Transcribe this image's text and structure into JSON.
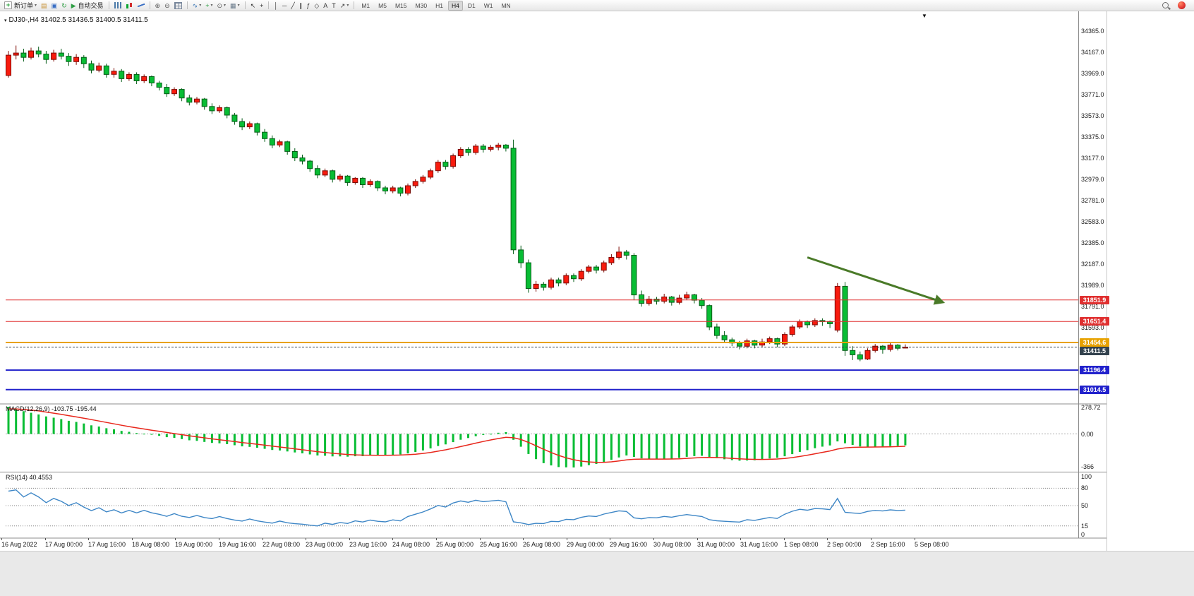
{
  "toolbar": {
    "items": [
      {
        "name": "new-order-button",
        "glyph": "+",
        "color": "#1d9e2f",
        "boxed": true,
        "label": "新订单",
        "dropdown": true
      },
      {
        "name": "profiles-icon",
        "glyph": "▤",
        "color": "#c78f2f"
      },
      {
        "name": "community-icon",
        "glyph": "▣",
        "color": "#3a6fc4"
      },
      {
        "name": "refresh-icon",
        "glyph": "↻",
        "color": "#2f9e44"
      },
      {
        "name": "algo-trading-button",
        "glyph": "▶",
        "color": "#2f9e44",
        "label": "自动交易"
      },
      {
        "sep": true
      },
      {
        "name": "bar-chart-icon",
        "shape": "bars"
      },
      {
        "name": "candlestick-chart-icon",
        "shape": "candles"
      },
      {
        "name": "line-chart-icon",
        "shape": "line"
      },
      {
        "sep": true
      },
      {
        "name": "zoom-in-icon",
        "glyph": "⊕",
        "color": "#555555"
      },
      {
        "name": "zoom-out-icon",
        "glyph": "⊖",
        "color": "#555555"
      },
      {
        "name": "tile-windows-icon",
        "shape": "grid"
      },
      {
        "sep": true
      },
      {
        "name": "indicators-icon",
        "glyph": "∿",
        "color": "#2b6cb0",
        "dropdown": true
      },
      {
        "name": "add-indicator-icon",
        "glyph": "+",
        "color": "#2f9e44",
        "dropdown": true
      },
      {
        "name": "periods-icon",
        "glyph": "⊙",
        "color": "#555555",
        "dropdown": true
      },
      {
        "name": "templates-icon",
        "glyph": "▦",
        "color": "#667788",
        "dropdown": true
      },
      {
        "sep": true
      },
      {
        "name": "cursor-icon",
        "glyph": "↖",
        "color": "#333333"
      },
      {
        "name": "crosshair-icon",
        "glyph": "+",
        "color": "#333333"
      },
      {
        "sep": true
      },
      {
        "name": "vertical-line-icon",
        "glyph": "│",
        "color": "#333333"
      },
      {
        "name": "horizontal-line-icon",
        "glyph": "─",
        "color": "#333333"
      },
      {
        "name": "trendline-icon",
        "glyph": "╱",
        "color": "#333333"
      },
      {
        "name": "channel-icon",
        "glyph": "∥",
        "color": "#333333"
      },
      {
        "name": "fibonacci-icon",
        "glyph": "ƒ",
        "color": "#333333"
      },
      {
        "name": "shapes-icon",
        "glyph": "◇",
        "color": "#333333"
      },
      {
        "name": "text-icon",
        "glyph": "A",
        "color": "#333333"
      },
      {
        "name": "label-icon",
        "glyph": "T",
        "color": "#333333"
      },
      {
        "name": "arrows-icon",
        "glyph": "↗",
        "color": "#333333",
        "dropdown": true
      },
      {
        "sep": true
      }
    ],
    "timeframes": [
      "M1",
      "M5",
      "M15",
      "M30",
      "H1",
      "H4",
      "D1",
      "W1",
      "MN"
    ],
    "active_timeframe": "H4",
    "right_items": [
      {
        "name": "search-icon",
        "shape": "mag"
      },
      {
        "name": "broker-logo-icon",
        "shape": "broker"
      }
    ]
  },
  "chart": {
    "symbol_label": "DJ30-,H4 31402.5 31436.5 31400.5 31411.5"
  },
  "indicators": {
    "macd": {
      "label": "MACD(12,26,9) -103.75 -195.44",
      "axis_max": "278.72",
      "axis_zero": "0.00",
      "axis_min": "-366"
    },
    "rsi": {
      "label": "RSI(14) 40.4553",
      "levels": [
        "100",
        "80",
        "50",
        "15",
        "0"
      ]
    }
  },
  "chart_data": {
    "type": "candlestick",
    "symbol": "DJ30-",
    "timeframe": "H4",
    "last_ohlc": {
      "open": 31402.5,
      "high": 31436.5,
      "low": 31400.5,
      "close": 31411.5
    },
    "up_color": "#f81b0e",
    "up_edge": "#7d0a04",
    "down_color": "#08bd34",
    "down_edge": "#045c17",
    "macd_hist_color": "#08bd34",
    "macd_signal_color": "#e8271c",
    "rsi_line_color": "#3d86c6",
    "level_line_color": "#808080",
    "price_ticks": [
      "34365.0",
      "34167.0",
      "33969.0",
      "33771.0",
      "33573.0",
      "33375.0",
      "33177.0",
      "32979.0",
      "32781.0",
      "32583.0",
      "32385.0",
      "32187.0",
      "31989.0",
      "31791.0",
      "31593.0"
    ],
    "x_labels": [
      "16 Aug 2022",
      "17 Aug 00:00",
      "17 Aug 16:00",
      "18 Aug 08:00",
      "19 Aug 00:00",
      "19 Aug 16:00",
      "22 Aug 08:00",
      "23 Aug 00:00",
      "23 Aug 16:00",
      "24 Aug 08:00",
      "25 Aug 00:00",
      "25 Aug 16:00",
      "26 Aug 08:00",
      "29 Aug 00:00",
      "29 Aug 16:00",
      "30 Aug 08:00",
      "31 Aug 00:00",
      "31 Aug 16:00",
      "1 Sep 08:00",
      "2 Sep 00:00",
      "2 Sep 16:00",
      "5 Sep 08:00"
    ],
    "hlines": [
      {
        "name": "resistance-line-1",
        "price": 31851.9,
        "label": "31851.9",
        "color": "#e03030",
        "width": 1
      },
      {
        "name": "resistance-line-2",
        "price": 31651.4,
        "label": "31651.4",
        "color": "#e03030",
        "width": 1
      },
      {
        "name": "support-line-selected",
        "price": 31454.6,
        "label": "31454.6",
        "color": "#e8a200",
        "width": 2
      },
      {
        "name": "current-price-line",
        "price": 31411.5,
        "label": "31411.5",
        "color": "#33424e",
        "width": 1,
        "dash": "3,2"
      },
      {
        "name": "support-line-blue-1",
        "price": 31196.4,
        "label": "31196.4",
        "color": "#2222cc",
        "width": 2
      },
      {
        "name": "support-line-blue-2",
        "price": 31014.5,
        "label": "31014.5",
        "color": "#2222cc",
        "width": 2
      }
    ],
    "annotation_arrow": {
      "from_index": 106,
      "from_price": 32250,
      "to_index": 124,
      "to_price": 31830,
      "color": "#4a7a28"
    },
    "candles": [
      [
        33950,
        34180,
        33930,
        34140
      ],
      [
        34140,
        34230,
        34100,
        34160
      ],
      [
        34160,
        34200,
        34080,
        34120
      ],
      [
        34120,
        34210,
        34100,
        34180
      ],
      [
        34180,
        34220,
        34120,
        34150
      ],
      [
        34150,
        34180,
        34060,
        34100
      ],
      [
        34100,
        34190,
        34080,
        34160
      ],
      [
        34160,
        34200,
        34100,
        34130
      ],
      [
        34130,
        34160,
        34040,
        34080
      ],
      [
        34080,
        34150,
        34050,
        34120
      ],
      [
        34120,
        34140,
        34020,
        34060
      ],
      [
        34060,
        34090,
        33970,
        34000
      ],
      [
        34000,
        34070,
        33980,
        34040
      ],
      [
        34040,
        34060,
        33930,
        33960
      ],
      [
        33960,
        34020,
        33930,
        33990
      ],
      [
        33990,
        34010,
        33890,
        33920
      ],
      [
        33920,
        33980,
        33900,
        33960
      ],
      [
        33960,
        33980,
        33870,
        33900
      ],
      [
        33900,
        33960,
        33880,
        33940
      ],
      [
        33940,
        33950,
        33850,
        33880
      ],
      [
        33880,
        33900,
        33810,
        33840
      ],
      [
        33840,
        33870,
        33750,
        33780
      ],
      [
        33780,
        33840,
        33760,
        33820
      ],
      [
        33820,
        33830,
        33710,
        33740
      ],
      [
        33740,
        33770,
        33670,
        33700
      ],
      [
        33700,
        33750,
        33680,
        33730
      ],
      [
        33730,
        33740,
        33630,
        33660
      ],
      [
        33660,
        33690,
        33590,
        33620
      ],
      [
        33620,
        33670,
        33600,
        33650
      ],
      [
        33650,
        33660,
        33550,
        33580
      ],
      [
        33580,
        33600,
        33490,
        33520
      ],
      [
        33520,
        33550,
        33440,
        33470
      ],
      [
        33470,
        33520,
        33450,
        33500
      ],
      [
        33500,
        33510,
        33390,
        33420
      ],
      [
        33420,
        33450,
        33330,
        33360
      ],
      [
        33360,
        33390,
        33270,
        33300
      ],
      [
        33300,
        33350,
        33280,
        33330
      ],
      [
        33330,
        33340,
        33210,
        33240
      ],
      [
        33240,
        33270,
        33150,
        33180
      ],
      [
        33180,
        33210,
        33120,
        33150
      ],
      [
        33150,
        33160,
        33050,
        33080
      ],
      [
        33080,
        33110,
        32990,
        33020
      ],
      [
        33020,
        33080,
        33000,
        33060
      ],
      [
        33060,
        33070,
        32950,
        32980
      ],
      [
        32980,
        33030,
        32960,
        33010
      ],
      [
        33010,
        33020,
        32920,
        32950
      ],
      [
        32950,
        33000,
        32930,
        32990
      ],
      [
        32990,
        33000,
        32900,
        32930
      ],
      [
        32930,
        32980,
        32910,
        32960
      ],
      [
        32960,
        32970,
        32870,
        32900
      ],
      [
        32900,
        32920,
        32840,
        32870
      ],
      [
        32870,
        32920,
        32850,
        32900
      ],
      [
        32900,
        32910,
        32820,
        32850
      ],
      [
        32850,
        32940,
        32830,
        32920
      ],
      [
        32920,
        32980,
        32900,
        32960
      ],
      [
        32960,
        33020,
        32940,
        33000
      ],
      [
        33000,
        33080,
        32980,
        33060
      ],
      [
        33060,
        33160,
        33040,
        33140
      ],
      [
        33140,
        33160,
        33070,
        33100
      ],
      [
        33100,
        33220,
        33080,
        33200
      ],
      [
        33200,
        33280,
        33180,
        33260
      ],
      [
        33260,
        33280,
        33200,
        33230
      ],
      [
        33230,
        33310,
        33210,
        33290
      ],
      [
        33290,
        33310,
        33230,
        33260
      ],
      [
        33260,
        33300,
        33240,
        33280
      ],
      [
        33280,
        33320,
        33250,
        33300
      ],
      [
        33300,
        33310,
        33240,
        33270
      ],
      [
        33270,
        33350,
        32280,
        32320
      ],
      [
        32320,
        32360,
        32150,
        32200
      ],
      [
        32200,
        32230,
        31920,
        31960
      ],
      [
        31960,
        32030,
        31930,
        32000
      ],
      [
        32000,
        32020,
        31940,
        31970
      ],
      [
        31970,
        32060,
        31950,
        32040
      ],
      [
        32040,
        32060,
        31980,
        32010
      ],
      [
        32010,
        32100,
        31990,
        32080
      ],
      [
        32080,
        32100,
        32020,
        32050
      ],
      [
        32050,
        32140,
        32030,
        32120
      ],
      [
        32120,
        32180,
        32100,
        32160
      ],
      [
        32160,
        32180,
        32100,
        32130
      ],
      [
        32130,
        32220,
        32110,
        32200
      ],
      [
        32200,
        32280,
        32180,
        32250
      ],
      [
        32250,
        32350,
        32230,
        32300
      ],
      [
        32300,
        32320,
        32230,
        32270
      ],
      [
        32270,
        32290,
        31850,
        31900
      ],
      [
        31900,
        31940,
        31790,
        31820
      ],
      [
        31820,
        31890,
        31800,
        31860
      ],
      [
        31860,
        31880,
        31810,
        31840
      ],
      [
        31840,
        31910,
        31820,
        31880
      ],
      [
        31880,
        31890,
        31800,
        31830
      ],
      [
        31830,
        31900,
        31810,
        31870
      ],
      [
        31870,
        31930,
        31850,
        31900
      ],
      [
        31900,
        31910,
        31820,
        31850
      ],
      [
        31850,
        31870,
        31770,
        31800
      ],
      [
        31800,
        31810,
        31570,
        31600
      ],
      [
        31600,
        31630,
        31490,
        31520
      ],
      [
        31520,
        31560,
        31450,
        31480
      ],
      [
        31480,
        31500,
        31420,
        31450
      ],
      [
        31450,
        31470,
        31390,
        31420
      ],
      [
        31420,
        31490,
        31400,
        31470
      ],
      [
        31470,
        31480,
        31400,
        31430
      ],
      [
        31430,
        31490,
        31410,
        31460
      ],
      [
        31460,
        31510,
        31440,
        31490
      ],
      [
        31490,
        31500,
        31410,
        31440
      ],
      [
        31440,
        31550,
        31420,
        31530
      ],
      [
        31530,
        31620,
        31510,
        31600
      ],
      [
        31600,
        31670,
        31580,
        31650
      ],
      [
        31650,
        31660,
        31590,
        31620
      ],
      [
        31620,
        31680,
        31600,
        31660
      ],
      [
        31660,
        31680,
        31610,
        31650
      ],
      [
        31650,
        31660,
        31590,
        31630
      ],
      [
        31570,
        32010,
        31550,
        31980
      ],
      [
        31980,
        32020,
        31330,
        31380
      ],
      [
        31380,
        31420,
        31290,
        31340
      ],
      [
        31340,
        31370,
        31280,
        31300
      ],
      [
        31300,
        31400,
        31290,
        31380
      ],
      [
        31380,
        31440,
        31360,
        31420
      ],
      [
        31420,
        31430,
        31350,
        31390
      ],
      [
        31390,
        31450,
        31370,
        31430
      ],
      [
        31430,
        31440,
        31380,
        31400
      ],
      [
        31402.5,
        31436.5,
        31400.5,
        31411.5
      ]
    ]
  }
}
